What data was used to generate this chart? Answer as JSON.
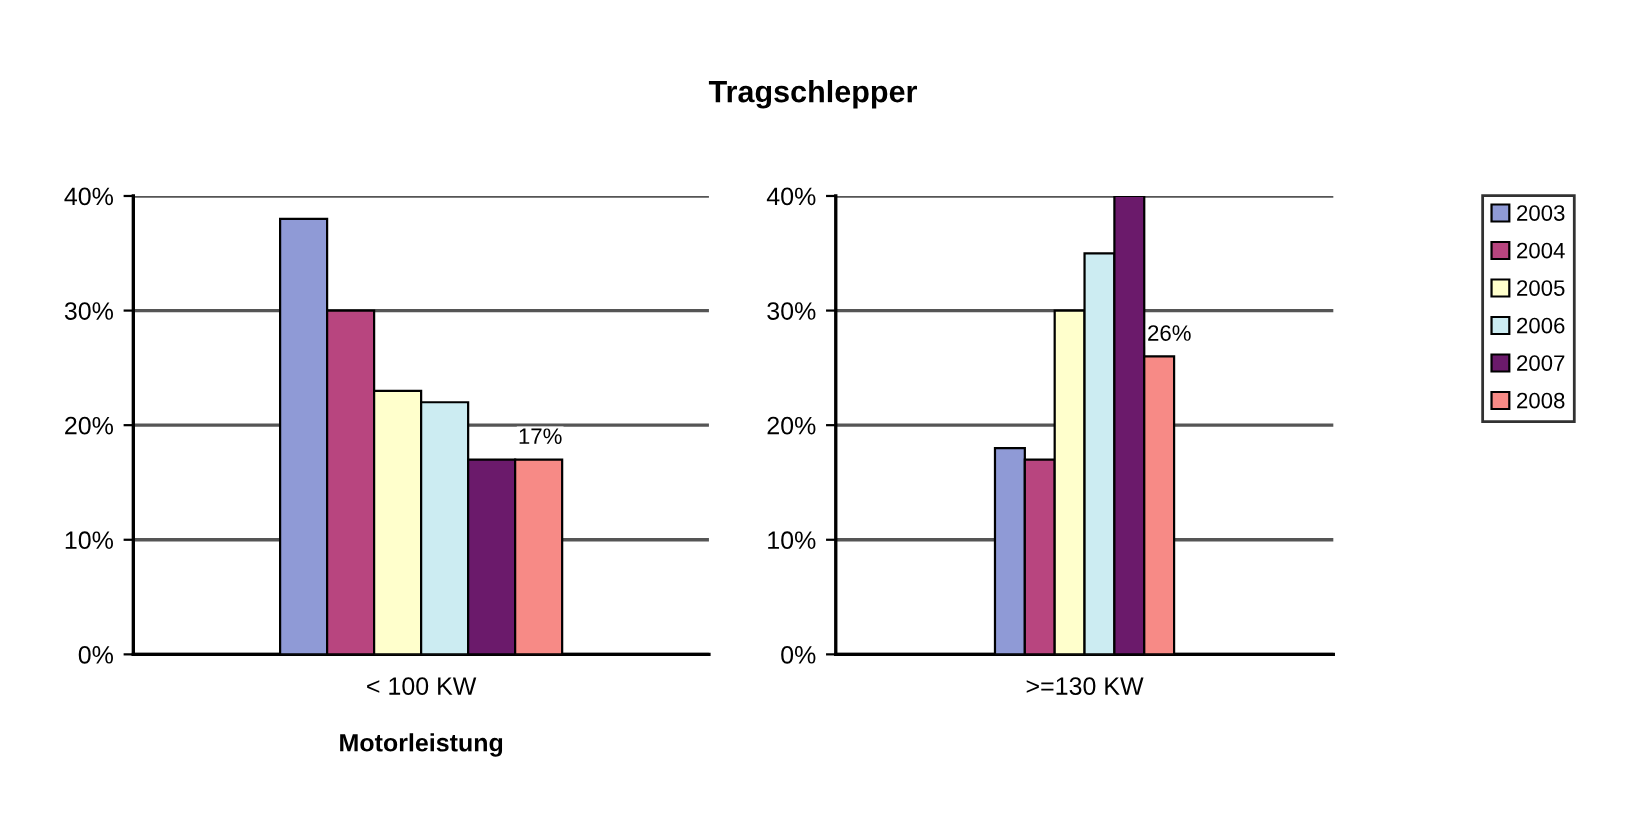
{
  "chart_data": [
    {
      "type": "bar",
      "title": "Tragschlepper",
      "xlabel": "Motorleistung",
      "categories": [
        "< 100 KW"
      ],
      "ylim": [
        0,
        40
      ],
      "yticks": [
        {
          "value": 0,
          "label": "0%"
        },
        {
          "value": 10,
          "label": "10%"
        },
        {
          "value": 20,
          "label": "20%"
        },
        {
          "value": 30,
          "label": "30%"
        },
        {
          "value": 40,
          "label": "40%"
        }
      ],
      "grid": "y",
      "legend": false,
      "series": [
        {
          "color": "#8f9ad6",
          "values": [
            38
          ]
        },
        {
          "color": "#b8457f",
          "values": [
            30
          ]
        },
        {
          "color": "#ffffcc",
          "values": [
            23
          ]
        },
        {
          "color": "#ccecf2",
          "values": [
            22
          ]
        },
        {
          "color": "#6b1a6b",
          "values": [
            17
          ]
        },
        {
          "color": "#f78a86",
          "values": [
            17
          ],
          "value_labels": [
            "17%"
          ]
        }
      ]
    },
    {
      "type": "bar",
      "categories": [
        ">=130 KW"
      ],
      "ylim": [
        0,
        40
      ],
      "yticks": [
        {
          "value": 0,
          "label": "0%"
        },
        {
          "value": 10,
          "label": "10%"
        },
        {
          "value": 20,
          "label": "20%"
        },
        {
          "value": 30,
          "label": "30%"
        },
        {
          "value": 40,
          "label": "40%"
        }
      ],
      "grid": "y",
      "legend": "right",
      "series": [
        {
          "name": "2003",
          "color": "#8f9ad6",
          "values": [
            18
          ]
        },
        {
          "name": "2004",
          "color": "#b8457f",
          "values": [
            17
          ]
        },
        {
          "name": "2005",
          "color": "#ffffcc",
          "values": [
            30
          ]
        },
        {
          "name": "2006",
          "color": "#ccecf2",
          "values": [
            35
          ]
        },
        {
          "name": "2007",
          "color": "#6b1a6b",
          "values": [
            40
          ]
        },
        {
          "name": "2008",
          "color": "#f78a86",
          "values": [
            26
          ],
          "value_labels": [
            "26%"
          ]
        }
      ]
    }
  ]
}
